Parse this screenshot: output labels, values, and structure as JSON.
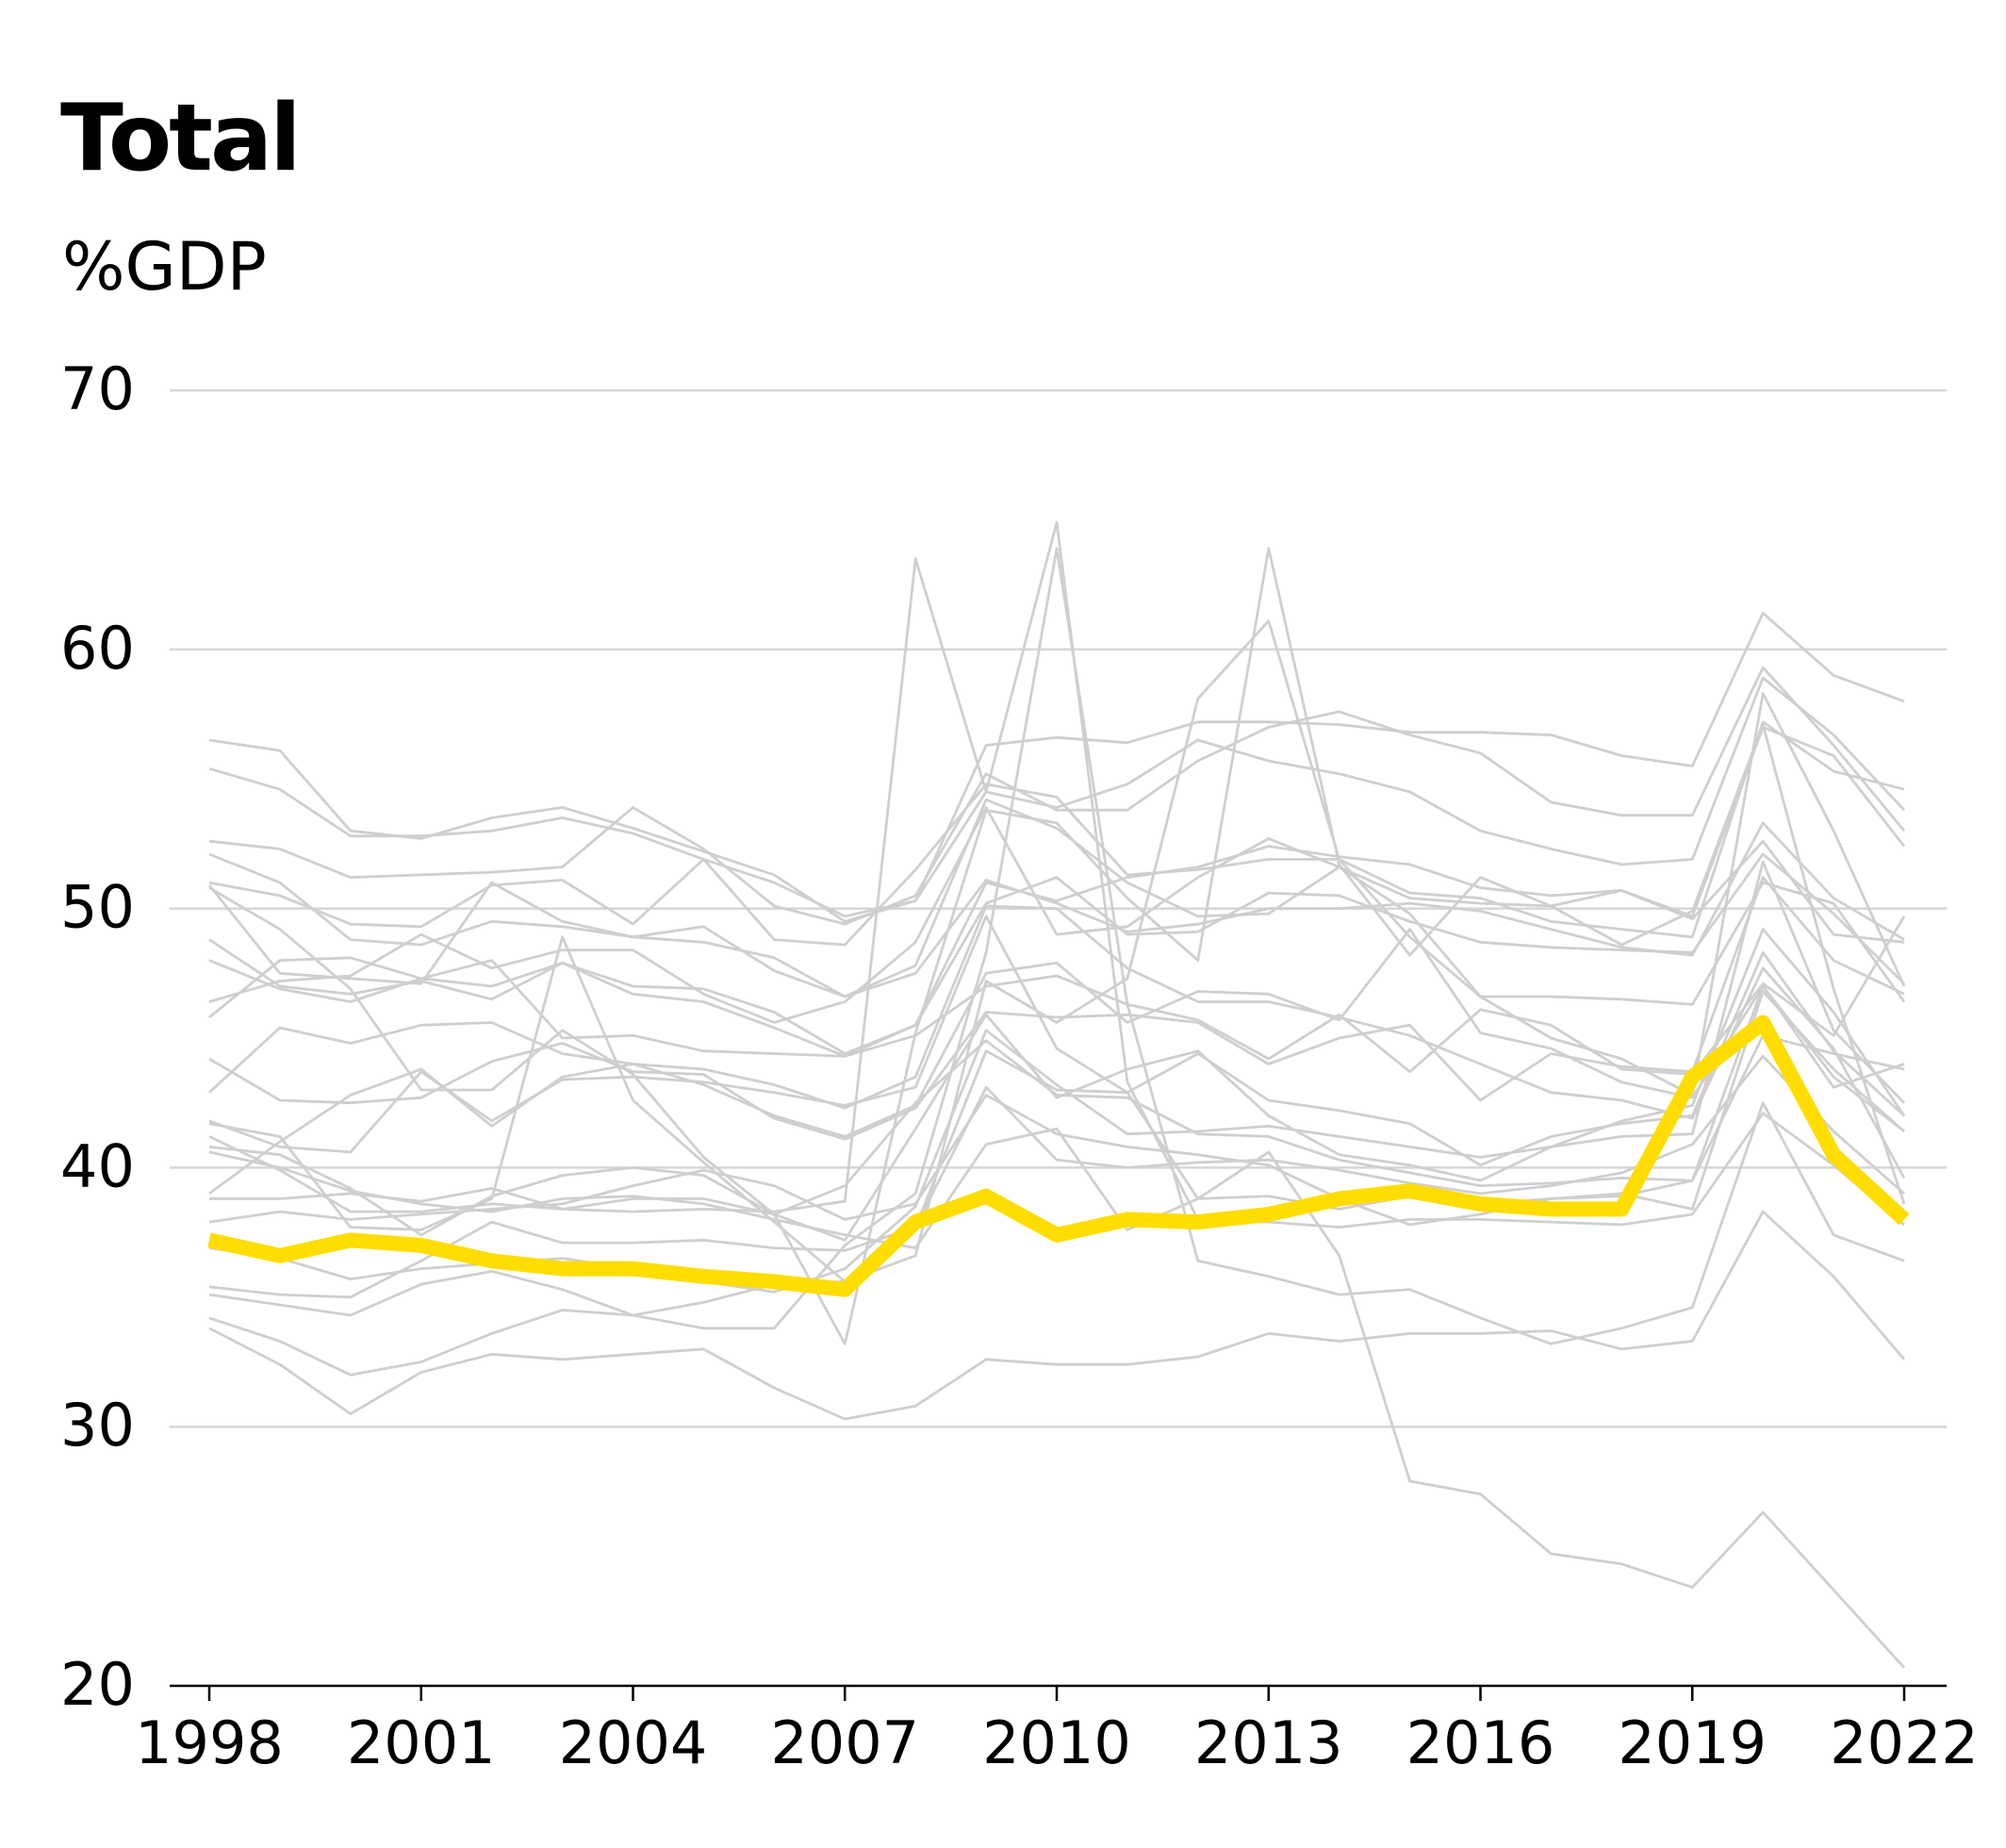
{
  "chart_data": {
    "type": "line",
    "title": "Total",
    "ylabel": "%GDP",
    "xlabel": "",
    "ylim": [
      20,
      70
    ],
    "xlim": [
      1998,
      2022
    ],
    "yticks": [
      20,
      30,
      40,
      50,
      60,
      70
    ],
    "xticks": [
      1998,
      2001,
      2004,
      2007,
      2010,
      2013,
      2016,
      2019,
      2022
    ],
    "grid": true,
    "colors": {
      "highlight": "#FFDD00",
      "other": "#CFCFCF",
      "grid": "#D6D6D6",
      "axis": "#000000"
    },
    "x": [
      1998,
      1999,
      2000,
      2001,
      2002,
      2003,
      2004,
      2005,
      2006,
      2007,
      2008,
      2009,
      2010,
      2011,
      2012,
      2013,
      2014,
      2015,
      2016,
      2017,
      2018,
      2019,
      2020,
      2021,
      2022
    ],
    "highlight_series": {
      "values": [
        37.2,
        36.6,
        37.2,
        37.0,
        36.4,
        36.1,
        36.1,
        35.8,
        35.6,
        35.3,
        37.9,
        38.9,
        37.4,
        38.0,
        37.9,
        38.2,
        38.8,
        39.1,
        38.6,
        38.4,
        38.4,
        43.5,
        45.6,
        40.5,
        38.0
      ]
    },
    "other_series": [
      {
        "values": [
          56.5,
          56.1,
          53.0,
          52.7,
          53.5,
          53.9,
          53.1,
          52.2,
          51.3,
          49.5,
          50.3,
          54.5,
          53.9,
          54.8,
          56.5,
          55.7,
          55.2,
          54.5,
          53.0,
          52.3,
          51.7,
          51.9,
          58.9,
          56.7,
          53.8
        ]
      },
      {
        "values": [
          55.4,
          54.6,
          52.8,
          52.8,
          53.0,
          53.5,
          52.9,
          51.9,
          51.0,
          49.7,
          50.3,
          56.3,
          56.6,
          56.4,
          57.2,
          57.2,
          57.1,
          56.8,
          56.8,
          56.7,
          55.9,
          55.5,
          61.4,
          59.0,
          58.0
        ]
      },
      {
        "values": [
          52.6,
          52.3,
          51.2,
          51.3,
          51.4,
          51.6,
          53.9,
          52.3,
          50.1,
          49.4,
          50.5,
          55.2,
          53.8,
          53.8,
          55.7,
          57.0,
          57.6,
          56.7,
          56.0,
          54.1,
          53.6,
          53.6,
          59.3,
          56.3,
          53.0
        ]
      },
      {
        "values": [
          52.1,
          51.0,
          48.8,
          48.6,
          49.5,
          49.3,
          48.9,
          49.3,
          47.6,
          46.6,
          47.8,
          54.2,
          53.1,
          51.0,
          49.7,
          49.8,
          51.6,
          50.4,
          50.2,
          50.1,
          50.7,
          49.7,
          57.0,
          55.9,
          52.4
        ]
      },
      {
        "values": [
          51.0,
          50.5,
          49.4,
          49.3,
          50.9,
          51.1,
          49.4,
          51.9,
          48.8,
          48.6,
          51.5,
          54.8,
          54.3,
          51.3,
          51.5,
          51.9,
          51.9,
          50.6,
          50.4,
          49.5,
          49.2,
          48.9,
          57.2,
          55.3,
          54.6
        ]
      },
      {
        "values": [
          50.9,
          47.5,
          47.3,
          47.1,
          51.0,
          49.5,
          48.9,
          48.7,
          48.1,
          46.6,
          47.5,
          51.1,
          50.2,
          49.1,
          49.4,
          50.0,
          50.0,
          50.2,
          49.9,
          49.2,
          48.5,
          48.2,
          53.3,
          50.4,
          48.8
        ]
      },
      {
        "values": [
          48.8,
          47.0,
          46.7,
          47.2,
          46.5,
          47.9,
          47.0,
          46.9,
          46.0,
          44.4,
          45.5,
          51.0,
          50.3,
          51.2,
          51.6,
          52.4,
          52.0,
          51.7,
          50.8,
          50.5,
          50.7,
          49.6,
          52.6,
          49.0,
          48.7
        ]
      },
      {
        "values": [
          48.0,
          46.9,
          46.4,
          47.3,
          47.0,
          47.9,
          46.7,
          46.4,
          45.4,
          44.3,
          45.5,
          50.2,
          51.2,
          49.0,
          49.1,
          50.6,
          50.5,
          49.5,
          48.7,
          48.5,
          48.4,
          48.3,
          52.1,
          49.8,
          47.1
        ]
      },
      {
        "values": [
          46.4,
          47.2,
          47.4,
          49.0,
          47.7,
          48.4,
          48.4,
          46.7,
          45.6,
          46.4,
          48.7,
          53.9,
          49.0,
          49.3,
          51.2,
          52.7,
          51.6,
          49.8,
          46.6,
          46.6,
          46.5,
          46.3,
          51.0,
          50.2,
          46.4
        ]
      },
      {
        "values": [
          45.8,
          48.0,
          48.1,
          47.3,
          48.0,
          45.0,
          45.1,
          44.5,
          44.4,
          44.3,
          45.1,
          47.0,
          47.4,
          46.3,
          45.7,
          44.2,
          45.9,
          43.7,
          46.1,
          45.5,
          43.8,
          43.6,
          47.1,
          45.1,
          49.7
        ]
      },
      {
        "values": [
          44.2,
          42.6,
          42.5,
          42.7,
          44.1,
          44.8,
          43.7,
          43.6,
          41.9,
          41.1,
          42.3,
          46.0,
          45.8,
          45.9,
          45.6,
          44.0,
          45.0,
          45.5,
          42.6,
          44.4,
          43.9,
          43.7,
          51.2,
          48.0,
          46.7
        ]
      },
      {
        "values": [
          42.9,
          45.4,
          44.8,
          45.5,
          45.6,
          44.4,
          44.0,
          43.2,
          42.0,
          41.2,
          42.4,
          47.5,
          47.9,
          45.6,
          46.8,
          46.7,
          45.7,
          49.2,
          45.2,
          44.6,
          43.3,
          42.7,
          47.0,
          43.1,
          44.0
        ]
      },
      {
        "values": [
          41.8,
          40.8,
          40.6,
          43.7,
          41.8,
          43.4,
          43.5,
          43.3,
          42.9,
          42.4,
          43.1,
          49.7,
          44.6,
          42.9,
          44.4,
          42.6,
          42.2,
          41.7,
          40.1,
          41.2,
          41.7,
          42.0,
          48.3,
          44.5,
          42.0
        ]
      },
      {
        "values": [
          41.2,
          39.9,
          38.3,
          38.3,
          38.6,
          38.4,
          38.8,
          38.8,
          38.2,
          39.3,
          42.5,
          44.9,
          42.8,
          42.7,
          41.3,
          41.2,
          40.3,
          39.8,
          39.3,
          39.4,
          39.6,
          39.5,
          45.1,
          44.4,
          43.8
        ]
      },
      {
        "values": [
          40.8,
          40.5,
          39.2,
          37.4,
          38.9,
          39.7,
          40.0,
          39.7,
          38.2,
          37.2,
          41.5,
          45.9,
          42.7,
          43.8,
          44.5,
          42.0,
          40.5,
          40.1,
          39.5,
          40.8,
          41.8,
          42.4,
          49.2,
          46.0,
          42.0
        ]
      },
      {
        "values": [
          39.0,
          41.0,
          42.8,
          43.8,
          41.6,
          43.5,
          44.0,
          43.8,
          43.2,
          42.3,
          43.5,
          50.1,
          50.0,
          47.7,
          46.4,
          46.4,
          45.8,
          45.1,
          44.0,
          42.9,
          42.6,
          41.9,
          47.7,
          44.6,
          39.6
        ]
      },
      {
        "values": [
          37.9,
          38.3,
          38.0,
          38.2,
          38.4,
          38.6,
          39.3,
          39.9,
          39.3,
          38.0,
          38.6,
          42.8,
          41.3,
          40.8,
          40.5,
          40.1,
          38.8,
          37.8,
          38.2,
          38.8,
          39.0,
          38.4,
          46.8,
          43.8,
          41.4
        ]
      },
      {
        "values": [
          35.4,
          35.1,
          35.0,
          36.4,
          37.9,
          37.1,
          37.1,
          37.2,
          36.9,
          36.8,
          37.7,
          43.1,
          40.3,
          40.0,
          40.2,
          40.3,
          39.9,
          39.4,
          39.0,
          39.3,
          39.8,
          40.9,
          44.3,
          41.4,
          39.0
        ]
      },
      {
        "values": [
          34.2,
          33.3,
          32.0,
          32.5,
          33.6,
          34.5,
          34.3,
          34.8,
          35.5,
          35.6,
          37.7,
          44.5,
          43.0,
          42.9,
          38.8,
          38.9,
          38.4,
          38.9,
          38.6,
          38.8,
          38.9,
          39.5,
          47.0,
          43.5,
          41.4
        ]
      },
      {
        "values": [
          33.8,
          32.4,
          30.5,
          32.1,
          32.8,
          32.6,
          32.8,
          33.0,
          31.5,
          30.3,
          30.8,
          32.6,
          32.4,
          32.4,
          32.7,
          33.6,
          33.3,
          33.6,
          33.6,
          33.7,
          33.0,
          33.3,
          38.3,
          35.8,
          32.6
        ]
      },
      {
        "values": [
          35.1,
          34.7,
          34.3,
          35.5,
          36.0,
          35.3,
          34.3,
          33.8,
          33.8,
          37.0,
          39.0,
          48.3,
          63.9,
          46.3,
          36.4,
          35.8,
          35.1,
          35.3,
          34.2,
          33.2,
          33.8,
          34.6,
          42.5,
          37.4,
          36.4
        ]
      },
      {
        "values": [
          38.8,
          38.8,
          39.0,
          38.7,
          39.2,
          38.4,
          38.3,
          38.4,
          38.3,
          38.7,
          63.5,
          54.5,
          64.9,
          43.3,
          38.0,
          37.9,
          37.7,
          38.0,
          38.0,
          37.9,
          37.8,
          38.2,
          42.1,
          40.1,
          37.8
        ]
      },
      {
        "values": [
          40.6,
          40.0,
          39.1,
          38.6,
          38.3,
          38.8,
          38.9,
          38.6,
          38.0,
          37.4,
          36.9,
          40.9,
          41.5,
          37.6,
          38.8,
          40.6,
          36.6,
          27.9,
          27.4,
          25.1,
          24.7,
          23.8,
          26.7,
          23.7,
          20.7
        ]
      },
      {
        "values": [
          50.8,
          49.2,
          46.9,
          43.0,
          43.0,
          45.3,
          43.6,
          40.4,
          38.2,
          33.2,
          45.2,
          53.8,
          53.3,
          50.4,
          48.0,
          63.9,
          51.7,
          48.2,
          51.2,
          50.1,
          48.6,
          49.9,
          57.1,
          46.9,
          38.6
        ]
      },
      {
        "values": [
          41.7,
          41.2,
          37.7,
          37.6,
          38.8,
          48.9,
          42.6,
          40.2,
          37.9,
          35.6,
          36.6,
          47.2,
          45.6,
          47.3,
          58.1,
          61.1,
          51.9,
          48.9,
          46.6,
          45.0,
          44.2,
          42.8,
          58.3,
          53.0,
          47.0
        ]
      },
      {
        "values": [
          36.9,
          36.5,
          35.7,
          36.1,
          36.3,
          36.5,
          36.1,
          35.6,
          35.2,
          36.1,
          38.5,
          45.3,
          43.2,
          41.3,
          41.4,
          41.6,
          41.2,
          40.8,
          40.4,
          40.8,
          41.2,
          41.3,
          51.8,
          45.3,
          42.5
        ]
      }
    ]
  }
}
